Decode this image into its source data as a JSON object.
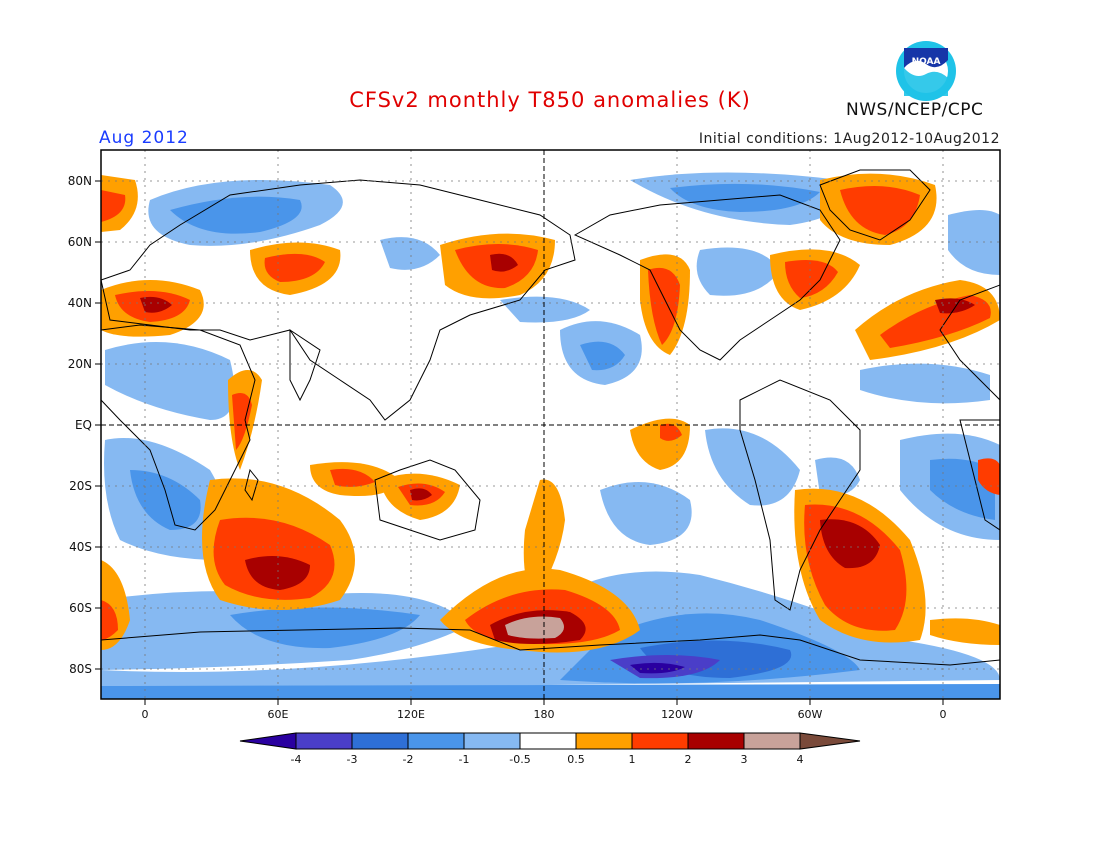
{
  "header": {
    "title": "CFSv2 monthly T850 anomalies (K)",
    "period": "Aug 2012",
    "initial_conditions": "Initial conditions: 1Aug2012-10Aug2012",
    "agency": "NWS/NCEP/CPC",
    "logo_text": "NOAA",
    "logo_icon": "noaa-logo-icon"
  },
  "map": {
    "lat_labels": [
      "80N",
      "60N",
      "40N",
      "20N",
      "EQ",
      "20S",
      "40S",
      "60S",
      "80S"
    ],
    "lon_labels": [
      "0",
      "60E",
      "120E",
      "180",
      "120W",
      "60W",
      "0"
    ]
  },
  "legend": {
    "levels": [
      "-4",
      "-3",
      "-2",
      "-1",
      "-0.5",
      "0.5",
      "1",
      "2",
      "3",
      "4"
    ],
    "colors": [
      "#2a00a0",
      "#4a3ec8",
      "#2e6fd6",
      "#4a95ea",
      "#86b9f2",
      "#ffffff",
      "#ffa000",
      "#ff3c00",
      "#a80000",
      "#c8a29a",
      "#7a4a3a"
    ]
  },
  "palette": {
    "neg_weak": "#86b9f2",
    "neg_mod": "#4a95ea",
    "neg_strong": "#2e6fd6",
    "neg_vstrong": "#4a3ec8",
    "neg_extreme": "#2a00a0",
    "pos_weak": "#ffa000",
    "pos_mod": "#ff3c00",
    "pos_strong": "#a80000",
    "pos_vstrong": "#c8a29a"
  }
}
